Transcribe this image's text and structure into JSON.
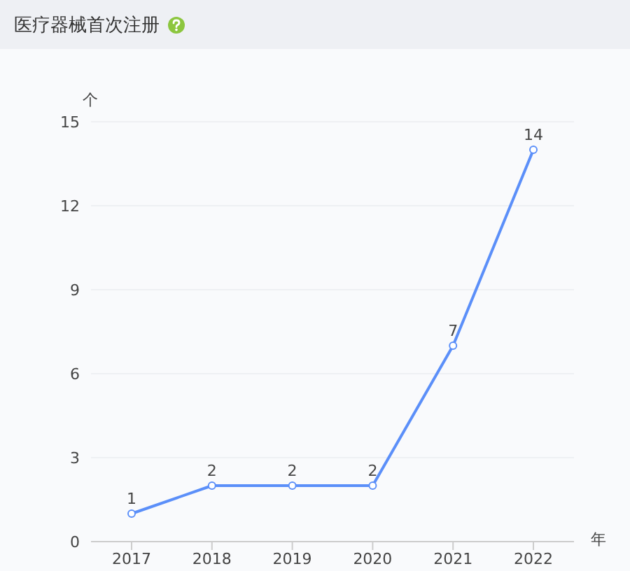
{
  "chart_data": {
    "type": "line",
    "title": "医疗器械首次注册",
    "xlabel": "年",
    "ylabel": "个",
    "categories": [
      "2017",
      "2018",
      "2019",
      "2020",
      "2021",
      "2022"
    ],
    "values": [
      1,
      2,
      2,
      2,
      7,
      14
    ],
    "color": "#5b8ff9",
    "ylim": [
      0,
      15
    ],
    "yticks": [
      0,
      3,
      6,
      9,
      12,
      15
    ],
    "grid": "y",
    "data_labels": true,
    "marker": "circle"
  }
}
